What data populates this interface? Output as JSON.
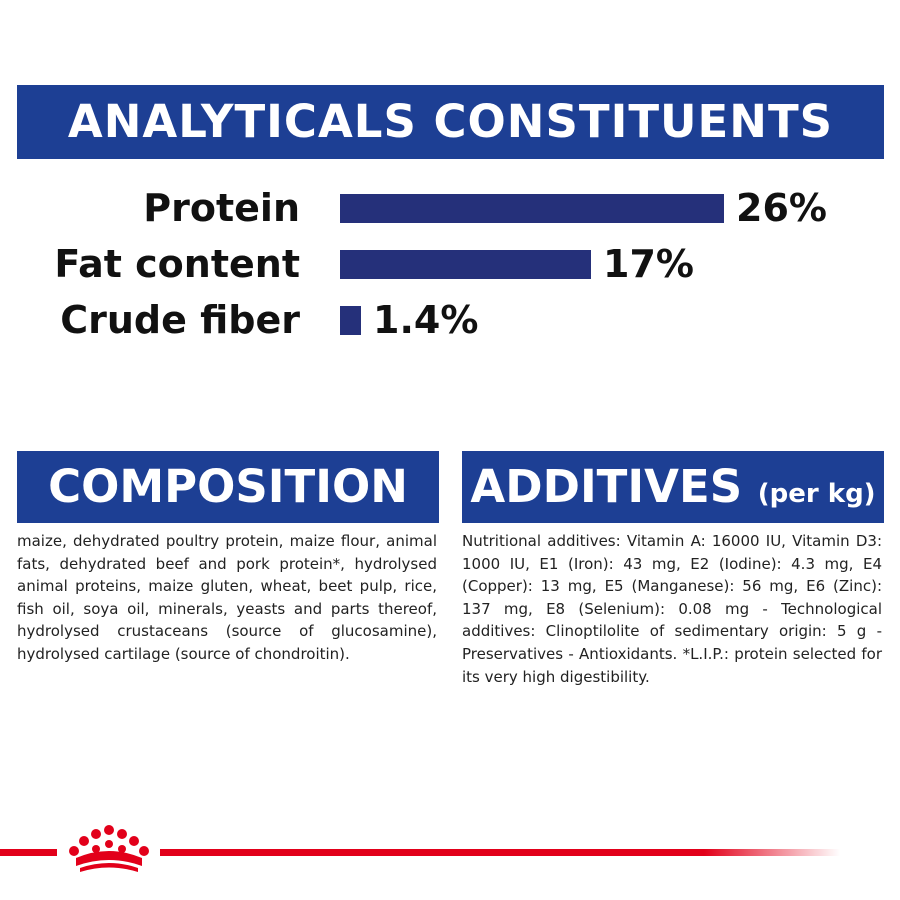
{
  "header": {
    "title": "ANALYTICALS CONSTITUENTS"
  },
  "chart_data": {
    "type": "bar",
    "orientation": "horizontal",
    "categories": [
      "Protein",
      "Fat content",
      "Crude fiber"
    ],
    "values": [
      26,
      17,
      1.4
    ],
    "value_labels": [
      "26%",
      "17%",
      "1.4%"
    ],
    "unit": "%",
    "xlim": [
      0,
      26
    ],
    "grid": false,
    "colors": {
      "bar": "#25307a"
    }
  },
  "composition": {
    "heading": "COMPOSITION",
    "text": "maize, dehydrated poultry protein, maize flour, animal fats, dehydrated beef and pork protein*, hydrolysed animal proteins, maize gluten, wheat, beet pulp, rice, fish oil, soya oil, minerals, yeasts and parts thereof, hydrolysed crustaceans (source of glucosamine), hydrolysed cartilage (source of chondroitin)."
  },
  "additives": {
    "heading": "ADDITIVES",
    "heading_suffix": "(per kg)",
    "text": "Nutritional additives: Vitamin A: 16000 IU, Vitamin D3: 1000 IU, E1 (Iron): 43 mg, E2 (Iodine): 4.3 mg, E4 (Copper): 13 mg, E5 (Manganese): 56 mg, E6 (Zinc): 137 mg, E8 (Selenium): 0.08 mg - Technological additives: Clinoptilolite of sedimentary origin: 5 g - Preservatives - Antioxidants. *L.I.P.: protein selected for its very high digestibility."
  },
  "brand": {
    "logo_icon": "crown-icon",
    "accent_color": "#e2001a",
    "banner_color": "#1d3f94"
  }
}
